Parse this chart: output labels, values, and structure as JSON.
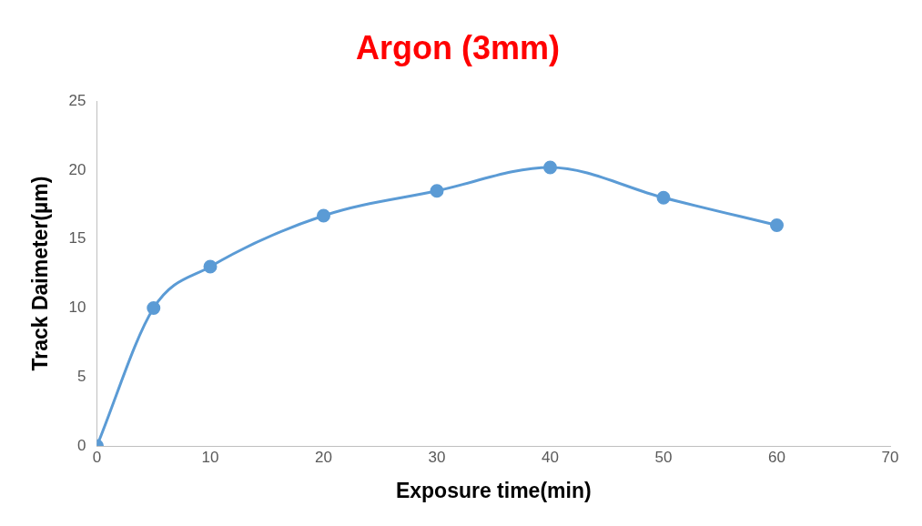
{
  "chart_data": {
    "type": "line",
    "title": "Argon (3mm)",
    "xlabel": "Exposure time(min)",
    "ylabel": "Track Daimeter(µm)",
    "x": [
      0,
      5,
      10,
      20,
      30,
      40,
      50,
      60
    ],
    "series": [
      {
        "color": "#5b9bd5",
        "values": [
          0,
          10,
          13,
          16.7,
          18.5,
          20.2,
          18,
          16
        ]
      }
    ],
    "xlim": [
      0,
      70
    ],
    "xticks": [
      0,
      10,
      20,
      30,
      40,
      50,
      60,
      70
    ],
    "ylim": [
      0,
      25
    ],
    "yticks": [
      0,
      5,
      10,
      15,
      20,
      25
    ],
    "grid": false,
    "legend": false,
    "marker": "circle",
    "line_style": "solid"
  }
}
